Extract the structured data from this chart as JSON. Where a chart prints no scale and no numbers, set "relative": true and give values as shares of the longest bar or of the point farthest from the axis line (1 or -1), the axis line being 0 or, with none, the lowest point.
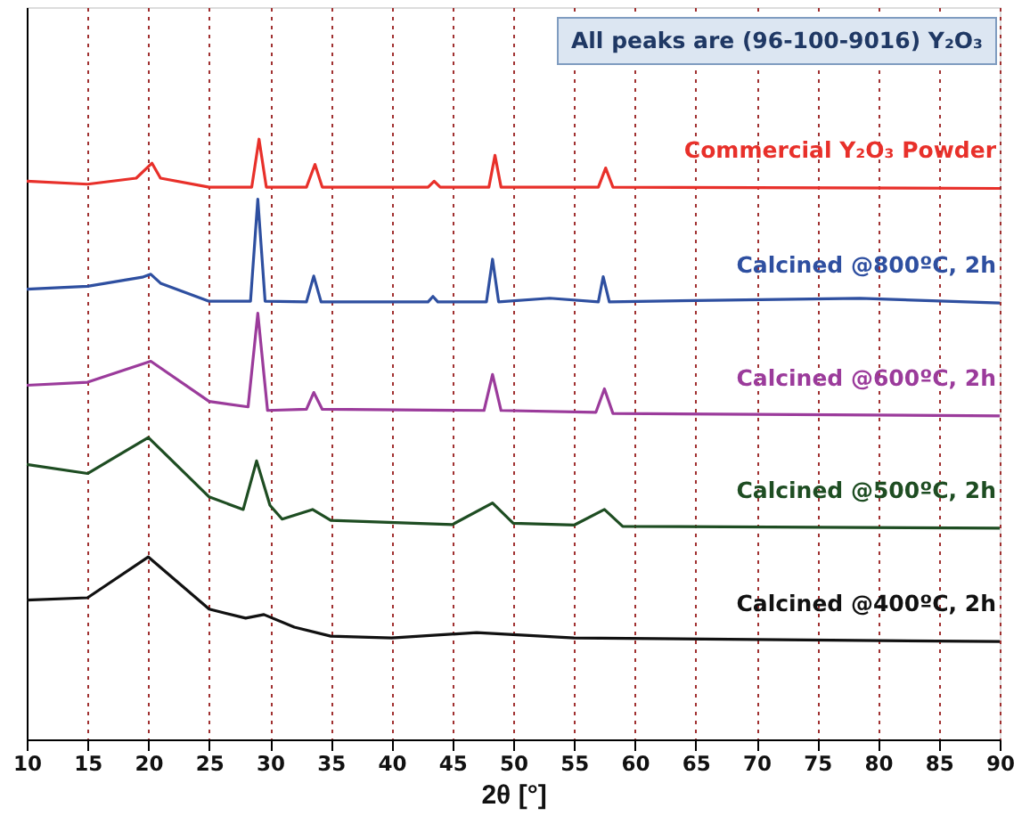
{
  "chart_data": {
    "type": "line",
    "relative": true,
    "xlabel": "2θ [°]",
    "xlim": [
      10,
      90
    ],
    "xticks": [
      10,
      15,
      20,
      25,
      30,
      35,
      40,
      45,
      50,
      55,
      60,
      65,
      70,
      75,
      80,
      85,
      90
    ],
    "grid": "x",
    "line_style": "solid",
    "marker": "none",
    "annotations": [
      "All peaks are (96-100-9016) Y₂O₃"
    ],
    "series": [
      {
        "name": "Commercial Y₂O₃ Powder",
        "color": "#e8302a",
        "x": [
          10,
          15,
          19,
          20.3,
          21,
          25,
          28.5,
          29.1,
          29.7,
          33,
          33.7,
          34.3,
          43,
          43.5,
          44,
          48,
          48.5,
          49,
          57,
          57.6,
          58.2,
          90
        ],
        "values": [
          0.93,
          0.925,
          0.935,
          0.96,
          0.935,
          0.92,
          0.92,
          1.0,
          0.92,
          0.92,
          0.958,
          0.92,
          0.92,
          0.93,
          0.92,
          0.92,
          0.973,
          0.92,
          0.92,
          0.952,
          0.92,
          0.918
        ]
      },
      {
        "name": "Calcined @800ºC, 2h",
        "color": "#2e4fa0",
        "x": [
          10,
          15,
          19.5,
          20.2,
          21,
          25,
          28.4,
          29.0,
          29.6,
          33,
          33.6,
          34.2,
          43,
          43.4,
          43.8,
          47.8,
          48.3,
          48.8,
          53,
          57,
          57.4,
          57.9,
          78.5,
          90
        ],
        "values": [
          0.75,
          0.755,
          0.77,
          0.775,
          0.76,
          0.73,
          0.73,
          0.9,
          0.73,
          0.729,
          0.772,
          0.729,
          0.729,
          0.738,
          0.729,
          0.729,
          0.8,
          0.729,
          0.735,
          0.729,
          0.771,
          0.729,
          0.735,
          0.727
        ]
      },
      {
        "name": "Calcined @600ºC, 2h",
        "color": "#9b3b9b",
        "x": [
          10,
          15,
          20.2,
          25,
          28.2,
          29.0,
          29.8,
          33,
          33.6,
          34.3,
          47.6,
          48.3,
          49,
          56.8,
          57.5,
          58.2,
          90
        ],
        "values": [
          0.59,
          0.595,
          0.63,
          0.563,
          0.554,
          0.71,
          0.548,
          0.55,
          0.578,
          0.55,
          0.548,
          0.608,
          0.548,
          0.545,
          0.584,
          0.543,
          0.539
        ]
      },
      {
        "name": "Calcined @500ºC, 2h",
        "color": "#1e4d22",
        "x": [
          10,
          15,
          20,
          25,
          27.8,
          28.9,
          30,
          31,
          33.5,
          35,
          45,
          48.3,
          50,
          55,
          57.5,
          59,
          90
        ],
        "values": [
          0.458,
          0.443,
          0.503,
          0.404,
          0.383,
          0.464,
          0.39,
          0.367,
          0.383,
          0.365,
          0.358,
          0.394,
          0.36,
          0.357,
          0.383,
          0.355,
          0.352
        ]
      },
      {
        "name": "Calcined @400ºC, 2h",
        "color": "#111111",
        "x": [
          10,
          15,
          20,
          25,
          28,
          29.5,
          32,
          35,
          40,
          47,
          55,
          90
        ],
        "values": [
          0.232,
          0.236,
          0.304,
          0.217,
          0.202,
          0.208,
          0.187,
          0.172,
          0.169,
          0.178,
          0.169,
          0.163
        ]
      }
    ]
  }
}
